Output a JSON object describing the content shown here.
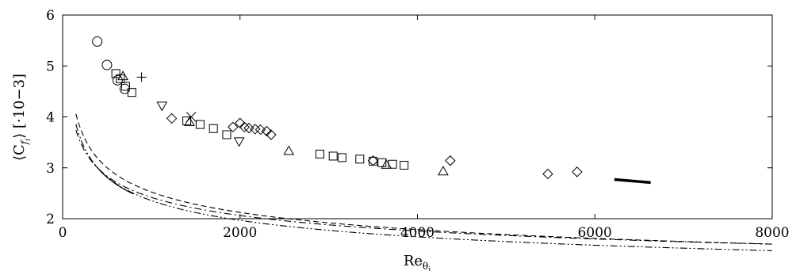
{
  "chart_data": {
    "type": "scatter",
    "title": "",
    "xlabel": "Re_θi",
    "ylabel": "⟨C_fi⟩ [·10−3]",
    "xlim": [
      0,
      8000
    ],
    "ylim": [
      2,
      6
    ],
    "xticks": [
      "0",
      "2000",
      "4000",
      "6000",
      "8000"
    ],
    "yticks": [
      "2",
      "3",
      "4",
      "5",
      "6"
    ],
    "grid": false,
    "series": [
      {
        "marker": "circle",
        "points": [
          [
            390,
            5.48
          ],
          [
            500,
            5.02
          ],
          [
            620,
            4.72
          ],
          [
            700,
            4.55
          ]
        ]
      },
      {
        "marker": "square",
        "points": [
          [
            600,
            4.85
          ],
          [
            650,
            4.75
          ],
          [
            710,
            4.6
          ],
          [
            780,
            4.48
          ],
          [
            1400,
            3.92
          ],
          [
            1550,
            3.85
          ],
          [
            1700,
            3.77
          ],
          [
            1850,
            3.65
          ],
          [
            2900,
            3.27
          ],
          [
            3050,
            3.23
          ],
          [
            3150,
            3.2
          ],
          [
            3350,
            3.17
          ],
          [
            3500,
            3.13
          ],
          [
            3600,
            3.1
          ],
          [
            3720,
            3.07
          ],
          [
            3850,
            3.05
          ]
        ]
      },
      {
        "marker": "triangle-up",
        "points": [
          [
            680,
            4.8
          ],
          [
            1430,
            3.9
          ],
          [
            2550,
            3.33
          ],
          [
            3650,
            3.06
          ],
          [
            4290,
            2.93
          ]
        ]
      },
      {
        "marker": "triangle-down",
        "points": [
          [
            1120,
            4.22
          ],
          [
            1990,
            3.52
          ]
        ]
      },
      {
        "marker": "diamond",
        "points": [
          [
            1230,
            3.97
          ],
          [
            1920,
            3.8
          ],
          [
            2000,
            3.88
          ],
          [
            2050,
            3.8
          ],
          [
            2100,
            3.78
          ],
          [
            2170,
            3.76
          ],
          [
            2230,
            3.75
          ],
          [
            2300,
            3.72
          ],
          [
            2350,
            3.65
          ],
          [
            3500,
            3.14
          ],
          [
            4370,
            3.14
          ],
          [
            5470,
            2.88
          ],
          [
            5800,
            2.92
          ]
        ]
      },
      {
        "marker": "plus",
        "points": [
          [
            890,
            4.78
          ]
        ]
      },
      {
        "marker": "cross",
        "points": [
          [
            1450,
            4.0
          ]
        ]
      }
    ],
    "curves": [
      {
        "style": "dashed",
        "coef": 14.2,
        "power": 0.25
      },
      {
        "style": "dashdot",
        "coef": 11.85,
        "power": 0.23
      },
      {
        "style": "dashdotdot",
        "coef": 14.2,
        "power": 0.26
      },
      {
        "style": "solid",
        "coef": 14.6,
        "power": 0.265,
        "x_range": [
          360,
          800
        ]
      }
    ],
    "thick_segment": {
      "x": [
        6220,
        6630
      ],
      "y": [
        2.77,
        2.71
      ]
    }
  }
}
